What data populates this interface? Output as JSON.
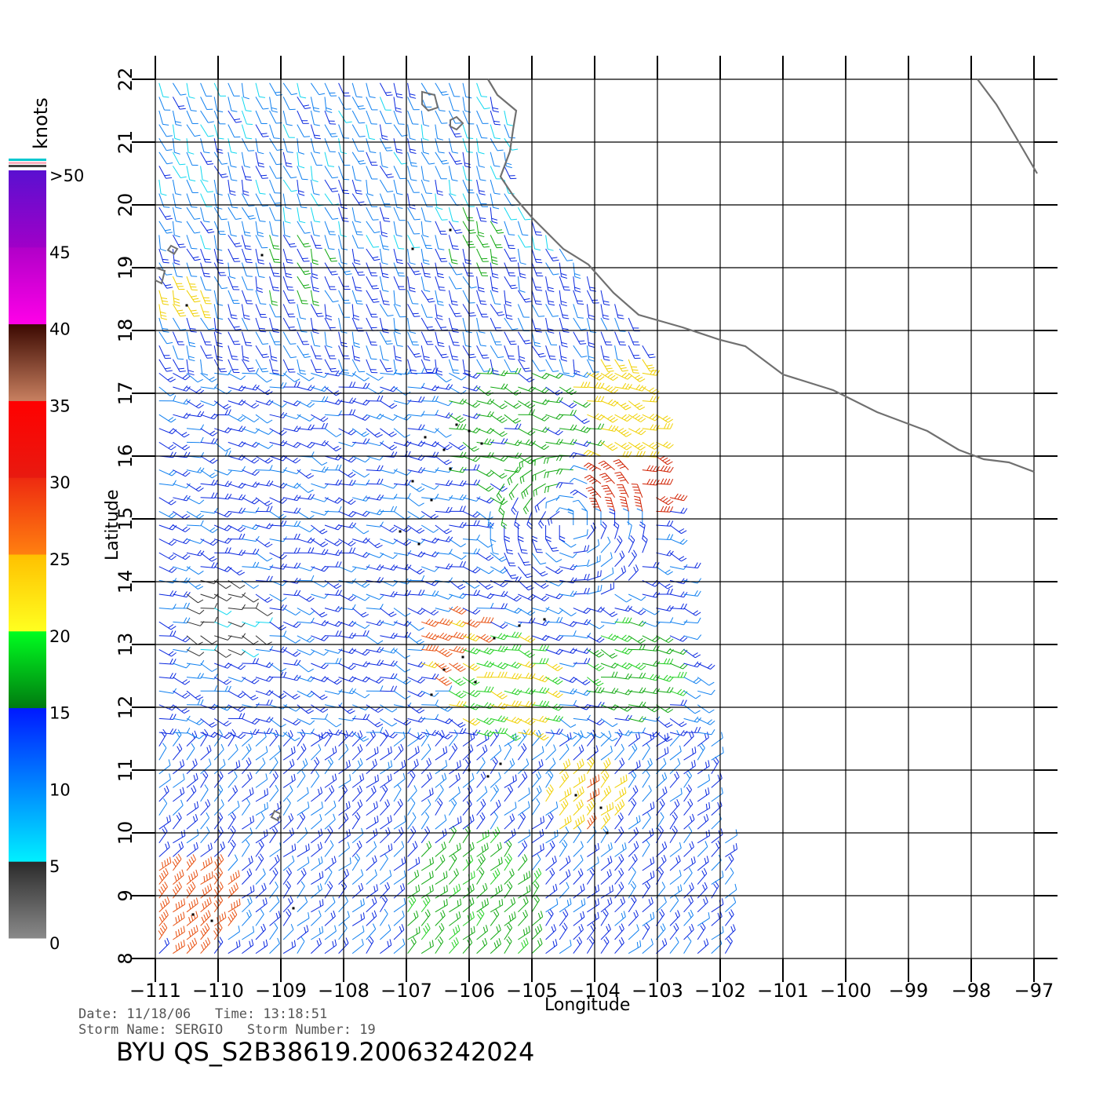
{
  "map": {
    "units_label": "knots",
    "legend": {
      "ticks": [
        {
          "label": ">50",
          "value": 50
        },
        {
          "label": "45",
          "value": 45
        },
        {
          "label": "40",
          "value": 40
        },
        {
          "label": "35",
          "value": 35
        },
        {
          "label": "30",
          "value": 30
        },
        {
          "label": "25",
          "value": 25
        },
        {
          "label": "20",
          "value": 20
        },
        {
          "label": "15",
          "value": 15
        },
        {
          "label": "10",
          "value": 10
        },
        {
          "label": "5",
          "value": 5
        },
        {
          "label": "0",
          "value": 0
        }
      ],
      "bands": [
        {
          "from": 0,
          "to": 5,
          "top": "#2a2a2a",
          "bottom": "#8a8a8a"
        },
        {
          "from": 5,
          "to": 15,
          "top": "#0018ff",
          "bottom": "#00f0ff"
        },
        {
          "from": 15,
          "to": 20,
          "top": "#00ff20",
          "bottom": "#007a10"
        },
        {
          "from": 20,
          "to": 25,
          "top": "#ffc000",
          "bottom": "#ffff20"
        },
        {
          "from": 25,
          "to": 30,
          "top": "#ee2a10",
          "bottom": "#ff8010"
        },
        {
          "from": 30,
          "to": 35,
          "top": "#ff0000",
          "bottom": "#e81a10"
        },
        {
          "from": 35,
          "to": 40,
          "top": "#3a0800",
          "bottom": "#c88060"
        },
        {
          "from": 40,
          "to": 45,
          "top": "#b000c8",
          "bottom": "#ff00e8"
        },
        {
          "from": 45,
          "to": 50,
          "top": "#5a10d0",
          "bottom": "#a000c8"
        }
      ],
      "top_stripe_colors": [
        "#00c8d0",
        "#ffb0c0",
        "#404040"
      ]
    },
    "axes": {
      "x_label": "Longitude",
      "y_label": "Latitude",
      "x_range": [
        -111,
        -97
      ],
      "y_range": [
        8,
        22
      ],
      "x_ticks": [
        {
          "value": -111,
          "label": "−111"
        },
        {
          "value": -110,
          "label": "−110"
        },
        {
          "value": -109,
          "label": "−109"
        },
        {
          "value": -108,
          "label": "−108"
        },
        {
          "value": -107,
          "label": "−107"
        },
        {
          "value": -106,
          "label": "−106"
        },
        {
          "value": -105,
          "label": "−105"
        },
        {
          "value": -104,
          "label": "−104"
        },
        {
          "value": -103,
          "label": "−103"
        },
        {
          "value": -102,
          "label": "−102"
        },
        {
          "value": -101,
          "label": "−101"
        },
        {
          "value": -100,
          "label": "−100"
        },
        {
          "value": -99,
          "label": "−99"
        },
        {
          "value": -98,
          "label": "−98"
        },
        {
          "value": -97,
          "label": "−97"
        }
      ],
      "y_ticks": [
        {
          "value": 8,
          "label": "8"
        },
        {
          "value": 9,
          "label": "9"
        },
        {
          "value": 10,
          "label": "10"
        },
        {
          "value": 11,
          "label": "11"
        },
        {
          "value": 12,
          "label": "12"
        },
        {
          "value": 13,
          "label": "13"
        },
        {
          "value": 14,
          "label": "14"
        },
        {
          "value": 15,
          "label": "15"
        },
        {
          "value": 16,
          "label": "16"
        },
        {
          "value": 17,
          "label": "17"
        },
        {
          "value": 18,
          "label": "18"
        },
        {
          "value": 19,
          "label": "19"
        },
        {
          "value": 20,
          "label": "20"
        },
        {
          "value": 21,
          "label": "21"
        },
        {
          "value": 22,
          "label": "22"
        }
      ]
    },
    "coastline": [
      [
        -105.7,
        22.0
      ],
      [
        -105.55,
        21.75
      ],
      [
        -105.25,
        21.5
      ],
      [
        -105.3,
        21.2
      ],
      [
        -105.35,
        20.85
      ],
      [
        -105.5,
        20.45
      ],
      [
        -105.3,
        20.15
      ],
      [
        -105.0,
        19.8
      ],
      [
        -104.5,
        19.3
      ],
      [
        -104.1,
        19.05
      ],
      [
        -103.7,
        18.6
      ],
      [
        -103.3,
        18.25
      ],
      [
        -102.6,
        18.05
      ],
      [
        -102.0,
        17.85
      ],
      [
        -101.6,
        17.75
      ],
      [
        -101.0,
        17.3
      ],
      [
        -100.2,
        17.05
      ],
      [
        -99.5,
        16.7
      ],
      [
        -98.7,
        16.4
      ],
      [
        -98.2,
        16.1
      ],
      [
        -97.8,
        15.95
      ],
      [
        -97.4,
        15.9
      ],
      [
        -97.0,
        15.75
      ]
    ],
    "coastline_ne": [
      [
        -96.95,
        20.5
      ],
      [
        -97.3,
        21.1
      ],
      [
        -97.6,
        21.6
      ],
      [
        -97.9,
        22.0
      ]
    ],
    "islands": [
      [
        [
          -106.75,
          21.8
        ],
        [
          -106.55,
          21.75
        ],
        [
          -106.5,
          21.55
        ],
        [
          -106.65,
          21.5
        ],
        [
          -106.75,
          21.6
        ]
      ],
      [
        [
          -106.3,
          21.35
        ],
        [
          -106.2,
          21.4
        ],
        [
          -106.1,
          21.3
        ],
        [
          -106.2,
          21.2
        ],
        [
          -106.3,
          21.25
        ]
      ],
      [
        [
          -110.75,
          19.35
        ],
        [
          -110.65,
          19.3
        ],
        [
          -110.7,
          19.22
        ],
        [
          -110.8,
          19.28
        ]
      ],
      [
        [
          -111.0,
          19.0
        ],
        [
          -110.85,
          18.95
        ],
        [
          -110.9,
          18.75
        ],
        [
          -111.0,
          18.8
        ]
      ],
      [
        [
          -109.1,
          10.35
        ],
        [
          -109.0,
          10.3
        ],
        [
          -109.05,
          10.2
        ],
        [
          -109.15,
          10.25
        ]
      ]
    ],
    "swath_outline": [
      [
        -111.0,
        22.0
      ],
      [
        -104.0,
        22.0
      ],
      [
        -102.7,
        15.0
      ],
      [
        -102.05,
        11.0
      ],
      [
        -101.7,
        8.0
      ],
      [
        -111.0,
        8.0
      ]
    ],
    "wind_regions": [
      {
        "lon": -103.4,
        "lat": 15.6,
        "radius": 0.7,
        "speed": 32
      },
      {
        "lon": -103.6,
        "lat": 16.8,
        "radius": 0.9,
        "speed": 23
      },
      {
        "lon": -106.3,
        "lat": 13.0,
        "radius": 0.6,
        "speed": 26
      },
      {
        "lon": -105.5,
        "lat": 12.3,
        "radius": 0.9,
        "speed": 20
      },
      {
        "lon": -104.2,
        "lat": 10.5,
        "radius": 0.6,
        "speed": 24
      },
      {
        "lon": -110.5,
        "lat": 8.8,
        "radius": 0.8,
        "speed": 27
      },
      {
        "lon": -110.6,
        "lat": 18.6,
        "radius": 0.4,
        "speed": 22
      },
      {
        "lon": -110.0,
        "lat": 13.4,
        "radius": 0.7,
        "speed": 4
      },
      {
        "lon": -105.3,
        "lat": 16.3,
        "radius": 1.2,
        "speed": 16
      },
      {
        "lon": -106.0,
        "lat": 19.5,
        "radius": 0.5,
        "speed": 16
      },
      {
        "lon": -108.8,
        "lat": 19.1,
        "radius": 0.6,
        "speed": 15
      },
      {
        "lon": -106.0,
        "lat": 8.7,
        "radius": 1.2,
        "speed": 17
      },
      {
        "lon": -103.5,
        "lat": 12.6,
        "radius": 0.8,
        "speed": 17
      }
    ],
    "rain_flag_points": [
      [
        -106.7,
        16.3
      ],
      [
        -106.4,
        16.1
      ],
      [
        -106.2,
        16.5
      ],
      [
        -105.8,
        16.2
      ],
      [
        -106.9,
        15.6
      ],
      [
        -106.6,
        15.3
      ],
      [
        -107.1,
        14.8
      ],
      [
        -106.8,
        14.6
      ],
      [
        -106.3,
        15.8
      ],
      [
        -106.0,
        16.4
      ],
      [
        -105.2,
        13.3
      ],
      [
        -105.6,
        13.1
      ],
      [
        -104.8,
        13.4
      ],
      [
        -106.4,
        12.6
      ],
      [
        -106.1,
        12.8
      ],
      [
        -105.9,
        12.4
      ],
      [
        -106.6,
        12.2
      ],
      [
        -105.5,
        11.1
      ],
      [
        -104.3,
        10.6
      ],
      [
        -103.9,
        10.4
      ],
      [
        -103.8,
        10.0
      ],
      [
        -106.9,
        19.3
      ],
      [
        -106.3,
        19.6
      ],
      [
        -109.3,
        19.2
      ],
      [
        -110.5,
        18.4
      ],
      [
        -106.0,
        11.0
      ],
      [
        -105.7,
        10.9
      ],
      [
        -110.4,
        8.7
      ],
      [
        -110.1,
        8.6
      ],
      [
        -108.8,
        8.8
      ]
    ],
    "vortex_center": {
      "lon": -104.4,
      "lat": 14.9
    },
    "footer": {
      "date_line": "Date: 11/18/06   Time: 13:18:51",
      "storm_line": "Storm Name: SERGIO   Storm Number: 19",
      "product_id": "BYU QS_S2B38619.20063242024"
    }
  }
}
